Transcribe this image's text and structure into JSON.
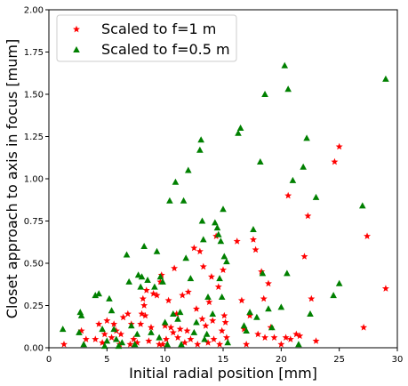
{
  "chart_data": {
    "type": "scatter",
    "title": "",
    "xlabel": "Initial radial position [mm]",
    "ylabel": "Closet approach to axis in focus [mum]",
    "xlim": [
      0,
      30
    ],
    "ylim": [
      0,
      2.0
    ],
    "xticks": [
      0,
      5,
      10,
      15,
      20,
      25,
      30
    ],
    "yticks": [
      0.0,
      0.25,
      0.5,
      0.75,
      1.0,
      1.25,
      1.5,
      1.75,
      2.0
    ],
    "xtick_labels": [
      "0",
      "5",
      "10",
      "15",
      "20",
      "25",
      "30"
    ],
    "ytick_labels": [
      "0.00",
      "0.25",
      "0.50",
      "0.75",
      "1.00",
      "1.25",
      "1.50",
      "1.75",
      "2.00"
    ],
    "grid": false,
    "legend_position": "top-left",
    "series": [
      {
        "name": "Scaled to f=1 m",
        "marker": "star",
        "color": "#ff0000",
        "points": [
          [
            1.3,
            0.02
          ],
          [
            2.8,
            0.1
          ],
          [
            3.2,
            0.05
          ],
          [
            4.0,
            0.05
          ],
          [
            4.3,
            0.14
          ],
          [
            4.6,
            0.03
          ],
          [
            4.8,
            0.08
          ],
          [
            5.0,
            0.16
          ],
          [
            5.4,
            0.06
          ],
          [
            5.6,
            0.14
          ],
          [
            5.8,
            0.1
          ],
          [
            6.1,
            0.02
          ],
          [
            6.2,
            0.08
          ],
          [
            6.4,
            0.18
          ],
          [
            6.8,
            0.2
          ],
          [
            7.0,
            0.02
          ],
          [
            7.1,
            0.14
          ],
          [
            7.3,
            0.05
          ],
          [
            7.6,
            0.03
          ],
          [
            7.9,
            0.14
          ],
          [
            8.0,
            0.2
          ],
          [
            8.1,
            0.29
          ],
          [
            8.2,
            0.25
          ],
          [
            8.3,
            0.19
          ],
          [
            8.4,
            0.34
          ],
          [
            8.6,
            0.04
          ],
          [
            8.8,
            0.12
          ],
          [
            9.0,
            0.32
          ],
          [
            9.3,
            0.31
          ],
          [
            9.5,
            0.02
          ],
          [
            9.6,
            0.39
          ],
          [
            9.7,
            0.43
          ],
          [
            9.8,
            0.02
          ],
          [
            10.0,
            0.13
          ],
          [
            10.1,
            0.05
          ],
          [
            10.3,
            0.28
          ],
          [
            10.5,
            0.12
          ],
          [
            10.7,
            0.09
          ],
          [
            10.8,
            0.47
          ],
          [
            11.0,
            0.2
          ],
          [
            11.1,
            0.06
          ],
          [
            11.3,
            0.11
          ],
          [
            11.5,
            0.31
          ],
          [
            11.7,
            0.03
          ],
          [
            11.9,
            0.1
          ],
          [
            12.0,
            0.33
          ],
          [
            12.2,
            0.05
          ],
          [
            12.5,
            0.59
          ],
          [
            12.7,
            0.23
          ],
          [
            12.8,
            0.02
          ],
          [
            13.0,
            0.57
          ],
          [
            13.2,
            0.17
          ],
          [
            13.3,
            0.48
          ],
          [
            13.5,
            0.13
          ],
          [
            13.7,
            0.03
          ],
          [
            13.8,
            0.27
          ],
          [
            14.0,
            0.42
          ],
          [
            14.1,
            0.16
          ],
          [
            14.2,
            0.05
          ],
          [
            14.4,
            0.66
          ],
          [
            14.6,
            0.36
          ],
          [
            14.7,
            0.02
          ],
          [
            14.9,
            0.1
          ],
          [
            15.0,
            0.46
          ],
          [
            15.1,
            0.19
          ],
          [
            15.2,
            0.15
          ],
          [
            15.3,
            0.06
          ],
          [
            16.2,
            0.63
          ],
          [
            16.6,
            0.28
          ],
          [
            16.8,
            0.11
          ],
          [
            17.0,
            0.02
          ],
          [
            17.3,
            0.19
          ],
          [
            17.6,
            0.64
          ],
          [
            17.8,
            0.58
          ],
          [
            18.0,
            0.08
          ],
          [
            18.3,
            0.45
          ],
          [
            18.5,
            0.29
          ],
          [
            18.6,
            0.06
          ],
          [
            18.9,
            0.38
          ],
          [
            19.1,
            0.12
          ],
          [
            19.4,
            0.06
          ],
          [
            20.0,
            0.02
          ],
          [
            20.4,
            0.06
          ],
          [
            20.6,
            0.9
          ],
          [
            20.8,
            0.05
          ],
          [
            21.3,
            0.08
          ],
          [
            21.6,
            0.07
          ],
          [
            22.0,
            0.54
          ],
          [
            22.3,
            0.78
          ],
          [
            22.6,
            0.29
          ],
          [
            23.0,
            0.04
          ],
          [
            24.6,
            1.1
          ],
          [
            25.0,
            1.19
          ],
          [
            27.1,
            0.12
          ],
          [
            27.4,
            0.66
          ],
          [
            29.0,
            0.35
          ]
        ]
      },
      {
        "name": "Scaled to f=0.5 m",
        "marker": "triangle",
        "color": "#008000",
        "points": [
          [
            1.2,
            0.11
          ],
          [
            2.6,
            0.09
          ],
          [
            2.7,
            0.21
          ],
          [
            2.8,
            0.19
          ],
          [
            3.0,
            0.02
          ],
          [
            4.0,
            0.31
          ],
          [
            4.3,
            0.32
          ],
          [
            4.6,
            0.11
          ],
          [
            4.8,
            0.01
          ],
          [
            5.0,
            0.04
          ],
          [
            5.2,
            0.29
          ],
          [
            5.4,
            0.22
          ],
          [
            5.6,
            0.11
          ],
          [
            5.8,
            0.05
          ],
          [
            6.0,
            0.01
          ],
          [
            6.3,
            0.03
          ],
          [
            6.7,
            0.55
          ],
          [
            6.9,
            0.39
          ],
          [
            7.1,
            0.13
          ],
          [
            7.4,
            0.02
          ],
          [
            7.6,
            0.08
          ],
          [
            7.7,
            0.43
          ],
          [
            7.9,
            0.36
          ],
          [
            8.0,
            0.42
          ],
          [
            8.2,
            0.6
          ],
          [
            8.5,
            0.4
          ],
          [
            8.8,
            0.09
          ],
          [
            9.1,
            0.36
          ],
          [
            9.3,
            0.57
          ],
          [
            9.5,
            0.06
          ],
          [
            9.6,
            0.42
          ],
          [
            9.8,
            0.39
          ],
          [
            10.0,
            0.15
          ],
          [
            10.2,
            0.02
          ],
          [
            10.4,
            0.87
          ],
          [
            10.7,
            0.2
          ],
          [
            10.9,
            0.98
          ],
          [
            11.1,
            0.17
          ],
          [
            11.3,
            0.21
          ],
          [
            11.4,
            0.02
          ],
          [
            11.6,
            0.87
          ],
          [
            11.8,
            0.53
          ],
          [
            12.0,
            1.05
          ],
          [
            12.2,
            0.41
          ],
          [
            12.5,
            0.09
          ],
          [
            12.7,
            0.15
          ],
          [
            13.0,
            1.17
          ],
          [
            13.1,
            1.23
          ],
          [
            13.2,
            0.75
          ],
          [
            13.3,
            0.64
          ],
          [
            13.4,
            0.05
          ],
          [
            13.6,
            0.08
          ],
          [
            13.7,
            0.3
          ],
          [
            14.1,
            0.2
          ],
          [
            14.3,
            0.74
          ],
          [
            14.5,
            0.71
          ],
          [
            14.6,
            0.67
          ],
          [
            14.7,
            0.41
          ],
          [
            14.8,
            0.63
          ],
          [
            14.9,
            0.3
          ],
          [
            15.0,
            0.82
          ],
          [
            15.1,
            0.54
          ],
          [
            15.3,
            0.51
          ],
          [
            15.4,
            0.03
          ],
          [
            16.3,
            1.27
          ],
          [
            16.5,
            1.3
          ],
          [
            16.8,
            0.13
          ],
          [
            17.0,
            0.1
          ],
          [
            17.3,
            0.21
          ],
          [
            17.6,
            0.7
          ],
          [
            17.9,
            0.18
          ],
          [
            18.2,
            1.1
          ],
          [
            18.4,
            0.44
          ],
          [
            18.6,
            1.5
          ],
          [
            18.9,
            0.23
          ],
          [
            19.2,
            0.12
          ],
          [
            20.0,
            0.24
          ],
          [
            20.3,
            1.67
          ],
          [
            20.5,
            0.44
          ],
          [
            20.6,
            1.53
          ],
          [
            21.0,
            0.99
          ],
          [
            21.5,
            0.02
          ],
          [
            21.9,
            1.07
          ],
          [
            22.2,
            1.24
          ],
          [
            22.5,
            0.2
          ],
          [
            23.0,
            0.89
          ],
          [
            24.5,
            0.31
          ],
          [
            25.0,
            0.38
          ],
          [
            27.0,
            0.84
          ],
          [
            29.0,
            1.59
          ]
        ]
      }
    ]
  },
  "colors": {
    "red_series": "#ff0000",
    "green_series": "#008000",
    "axes": "#000000",
    "background": "#ffffff",
    "legend_border": "#cccccc"
  }
}
